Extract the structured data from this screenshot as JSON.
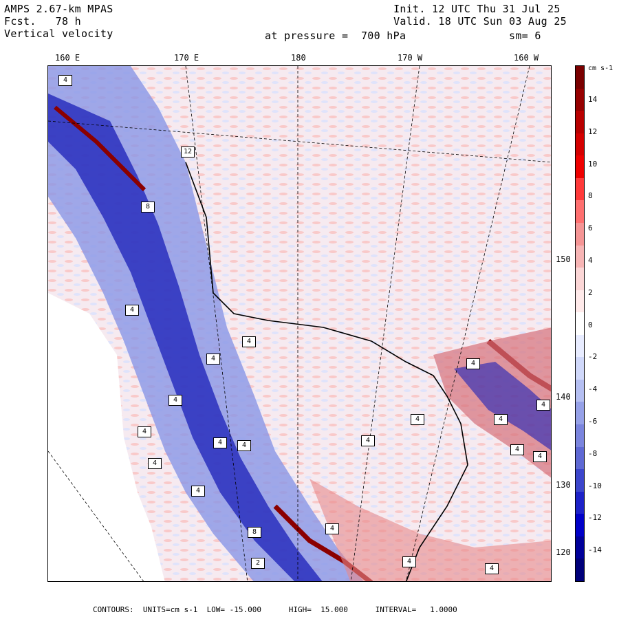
{
  "header": {
    "model": "AMPS 2.67-km MPAS",
    "fcst": "Fcst.   78 h",
    "field": "Vertical velocity",
    "init": "Init. 12 UTC Thu 31 Jul 25",
    "valid": "Valid. 18 UTC Sun 03 Aug 25",
    "pressure": "at pressure =  700 hPa",
    "smoothing": "sm= 6"
  },
  "longitude_labels": [
    "160 E",
    "170 E",
    "180",
    "170 W",
    "160 W"
  ],
  "latitude_labels": [
    "150 W",
    "140 W",
    "130 W",
    "120 W"
  ],
  "colorbar": {
    "units": "cm s-1",
    "ticks": [
      "14",
      "12",
      "10",
      "8",
      "6",
      "4",
      "2",
      "0",
      "-2",
      "-4",
      "-6",
      "-8",
      "-10",
      "-12",
      "-14"
    ],
    "colors": [
      "#7a0000",
      "#960000",
      "#b80000",
      "#d40000",
      "#ee0000",
      "#ff3a3a",
      "#ff7070",
      "#f59595",
      "#f7b5b5",
      "#fbd6d6",
      "#ffeaea",
      "#ffffff",
      "#e8ecff",
      "#d0d8fa",
      "#b5bff2",
      "#96a1e8",
      "#7b85de",
      "#5f69d4",
      "#3c46cc",
      "#1d22c8",
      "#0000c8",
      "#00009a",
      "#00007a"
    ]
  },
  "footer": "CONTOURS:  UNITS=cm s-1  LOW= -15.000      HIGH=  15.000      INTERVAL=   1.0000",
  "map_boxes": [
    "4",
    "12",
    "8",
    "4",
    "4",
    "4",
    "4",
    "4",
    "4",
    "4",
    "4",
    "4",
    "4",
    "4",
    "4",
    "4",
    "4",
    "4",
    "4",
    "4",
    "8",
    "2",
    "4",
    "4"
  ]
}
